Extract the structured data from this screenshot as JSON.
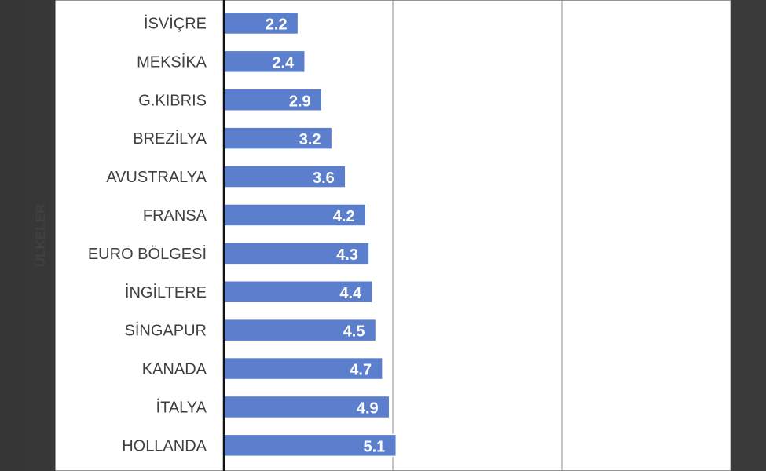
{
  "chart_data": {
    "type": "bar",
    "orientation": "horizontal",
    "title": "",
    "xlabel": "",
    "ylabel": "ÜLKELER",
    "categories": [
      "İSVİÇRE",
      "MEKSİKA",
      "G.KIBRIS",
      "BREZİLYA",
      "AVUSTRALYA",
      "FRANSA",
      "EURO BÖLGESİ",
      "İNGİLTERE",
      "SİNGAPUR",
      "KANADA",
      "İTALYA",
      "HOLLANDA"
    ],
    "values": [
      2.2,
      2.4,
      2.9,
      3.2,
      3.6,
      4.2,
      4.3,
      4.4,
      4.5,
      4.7,
      4.9,
      5.1
    ],
    "data_labels": [
      "2.2",
      "2.4",
      "2.9",
      "3.2",
      "3.6",
      "4.2",
      "4.3",
      "4.4",
      "4.5",
      "4.7",
      "4.9",
      "5.1"
    ],
    "xlim": [
      0,
      15
    ],
    "gridlines": true,
    "colors": {
      "bar": "#5B7FCC",
      "bar_edge": "#ffffff",
      "grid": "#8a8a8a",
      "axis": "#111111",
      "plot_bg": "#ffffff",
      "frame": "#2f2f2f"
    }
  }
}
